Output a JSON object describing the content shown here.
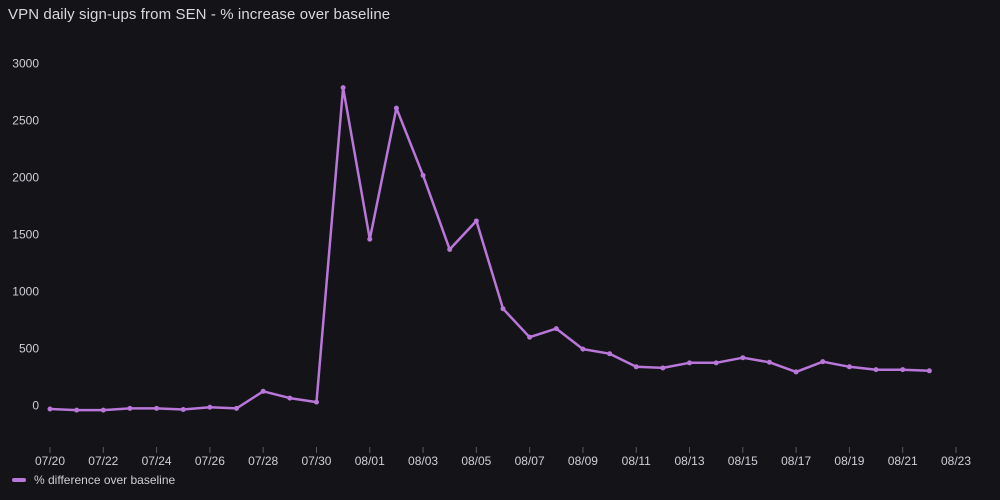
{
  "panel": {
    "title": "VPN daily sign-ups from SEN - % increase over baseline"
  },
  "colors": {
    "background": "#141318",
    "series": "#b877d9",
    "grid": "#2a2930",
    "text": "#cfced6"
  },
  "chart_data": {
    "type": "line",
    "title": "VPN daily sign-ups from SEN - % increase over baseline",
    "xlabel": "",
    "ylabel": "",
    "x": [
      "07/20",
      "07/21",
      "07/22",
      "07/23",
      "07/24",
      "07/25",
      "07/26",
      "07/27",
      "07/28",
      "07/29",
      "07/30",
      "07/31",
      "08/01",
      "08/02",
      "08/03",
      "08/04",
      "08/05",
      "08/06",
      "08/07",
      "08/08",
      "08/09",
      "08/10",
      "08/11",
      "08/12",
      "08/13",
      "08/14",
      "08/15",
      "08/16",
      "08/17",
      "08/18",
      "08/19",
      "08/20",
      "08/21",
      "08/22"
    ],
    "series": [
      {
        "name": "% difference over baseline",
        "values": [
          -30,
          -40,
          -40,
          -25,
          -25,
          -35,
          -15,
          -25,
          125,
          65,
          30,
          2790,
          1460,
          2610,
          2020,
          1370,
          1620,
          850,
          600,
          675,
          495,
          455,
          340,
          330,
          375,
          375,
          420,
          380,
          295,
          385,
          340,
          315,
          315,
          305
        ]
      }
    ],
    "x_tick_labels": [
      "07/20",
      "07/22",
      "07/24",
      "07/26",
      "07/28",
      "07/30",
      "08/01",
      "08/03",
      "08/05",
      "08/07",
      "08/09",
      "08/11",
      "08/13",
      "08/15",
      "08/17",
      "08/19",
      "08/21",
      "08/23"
    ],
    "y_ticks": [
      0,
      500,
      1000,
      1500,
      2000,
      2500,
      3000
    ],
    "ylim": [
      -390,
      3120
    ],
    "grid": false,
    "legend_position": "bottom-left"
  }
}
